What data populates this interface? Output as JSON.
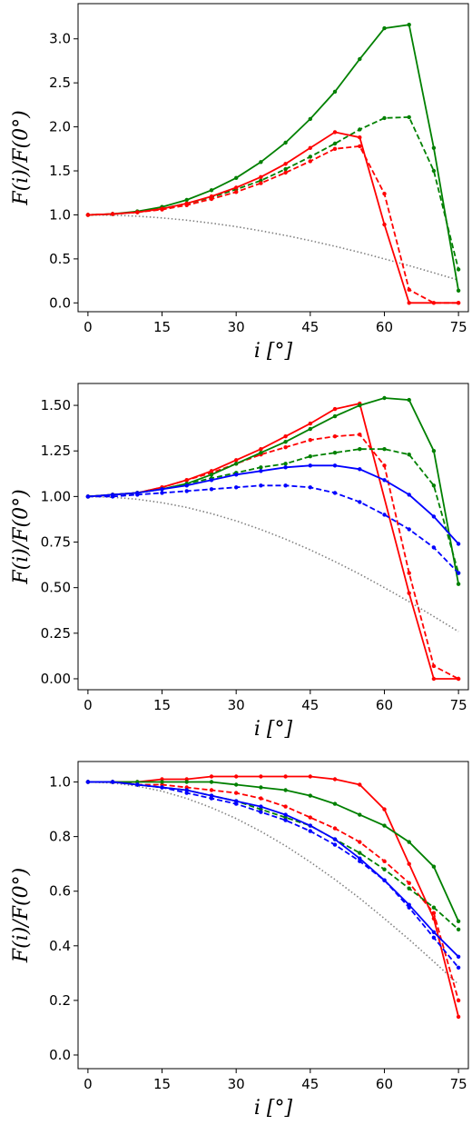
{
  "chart_data": [
    {
      "type": "line",
      "xlabel": "i  [°]",
      "ylabel": "F(i)/F(0°)",
      "xlim": [
        -2,
        77
      ],
      "ylim": [
        -0.1,
        3.4
      ],
      "xticks": [
        0,
        15,
        30,
        45,
        60,
        75
      ],
      "xtick_labels": [
        "0",
        "15",
        "30",
        "45",
        "60",
        "75"
      ],
      "yticks": [
        0.0,
        0.5,
        1.0,
        1.5,
        2.0,
        2.5,
        3.0
      ],
      "ytick_labels": [
        "0.0",
        "0.5",
        "1.0",
        "1.5",
        "2.0",
        "2.5",
        "3.0"
      ],
      "grid": false,
      "series": [
        {
          "color": "#808080",
          "style": "dotted",
          "markers": false,
          "x": [
            0,
            5,
            10,
            15,
            20,
            25,
            30,
            35,
            40,
            45,
            50,
            55,
            60,
            65,
            70,
            75
          ],
          "y": [
            1.0,
            0.996,
            0.985,
            0.966,
            0.94,
            0.906,
            0.866,
            0.819,
            0.766,
            0.707,
            0.643,
            0.574,
            0.5,
            0.423,
            0.342,
            0.259
          ]
        },
        {
          "color": "#008000",
          "style": "solid",
          "markers": true,
          "x": [
            0,
            5,
            10,
            15,
            20,
            25,
            30,
            35,
            40,
            45,
            50,
            55,
            60,
            65,
            70,
            75
          ],
          "y": [
            1.0,
            1.01,
            1.04,
            1.09,
            1.17,
            1.28,
            1.42,
            1.6,
            1.82,
            2.09,
            2.4,
            2.77,
            3.12,
            3.16,
            1.76,
            0.14
          ]
        },
        {
          "color": "#008000",
          "style": "dashed",
          "markers": true,
          "x": [
            0,
            5,
            10,
            15,
            20,
            25,
            30,
            35,
            40,
            45,
            50,
            55,
            60,
            65,
            70,
            75
          ],
          "y": [
            1.0,
            1.01,
            1.03,
            1.07,
            1.13,
            1.2,
            1.29,
            1.39,
            1.52,
            1.66,
            1.81,
            1.97,
            2.1,
            2.11,
            1.5,
            0.38
          ]
        },
        {
          "color": "#ff0000",
          "style": "solid",
          "markers": true,
          "x": [
            0,
            5,
            10,
            15,
            20,
            25,
            30,
            35,
            40,
            45,
            50,
            55,
            60,
            65,
            75
          ],
          "y": [
            1.0,
            1.01,
            1.03,
            1.07,
            1.13,
            1.21,
            1.31,
            1.43,
            1.58,
            1.76,
            1.94,
            1.88,
            0.89,
            0.0,
            0.0
          ]
        },
        {
          "color": "#ff0000",
          "style": "dashed",
          "markers": true,
          "x": [
            0,
            5,
            10,
            15,
            20,
            25,
            30,
            35,
            40,
            45,
            50,
            55,
            60,
            65,
            70,
            75
          ],
          "y": [
            1.0,
            1.01,
            1.03,
            1.06,
            1.11,
            1.18,
            1.26,
            1.36,
            1.48,
            1.61,
            1.75,
            1.78,
            1.24,
            0.15,
            0.0,
            0.0
          ]
        }
      ]
    },
    {
      "type": "line",
      "xlabel": "i  [°]",
      "ylabel": "F(i)/F(0°)",
      "xlim": [
        -2,
        77
      ],
      "ylim": [
        -0.06,
        1.62
      ],
      "xticks": [
        0,
        15,
        30,
        45,
        60,
        75
      ],
      "xtick_labels": [
        "0",
        "15",
        "30",
        "45",
        "60",
        "75"
      ],
      "yticks": [
        0.0,
        0.25,
        0.5,
        0.75,
        1.0,
        1.25,
        1.5
      ],
      "ytick_labels": [
        "0.00",
        "0.25",
        "0.50",
        "0.75",
        "1.00",
        "1.25",
        "1.50"
      ],
      "grid": false,
      "series": [
        {
          "color": "#808080",
          "style": "dotted",
          "markers": false,
          "x": [
            0,
            5,
            10,
            15,
            20,
            25,
            30,
            35,
            40,
            45,
            50,
            55,
            60,
            65,
            70,
            75
          ],
          "y": [
            1.0,
            0.996,
            0.985,
            0.966,
            0.94,
            0.906,
            0.866,
            0.819,
            0.766,
            0.707,
            0.643,
            0.574,
            0.5,
            0.423,
            0.342,
            0.259
          ]
        },
        {
          "color": "#ff0000",
          "style": "solid",
          "markers": true,
          "x": [
            0,
            5,
            10,
            15,
            20,
            25,
            30,
            35,
            40,
            45,
            50,
            55,
            65,
            70,
            75
          ],
          "y": [
            1.0,
            1.01,
            1.02,
            1.05,
            1.09,
            1.14,
            1.2,
            1.26,
            1.33,
            1.4,
            1.48,
            1.51,
            0.47,
            0.0,
            0.0
          ]
        },
        {
          "color": "#ff0000",
          "style": "dashed",
          "markers": true,
          "x": [
            0,
            5,
            10,
            15,
            20,
            25,
            30,
            35,
            40,
            45,
            50,
            55,
            60,
            65,
            70,
            75
          ],
          "y": [
            1.0,
            1.01,
            1.02,
            1.05,
            1.09,
            1.13,
            1.18,
            1.23,
            1.27,
            1.31,
            1.33,
            1.34,
            1.17,
            0.58,
            0.07,
            0.0
          ]
        },
        {
          "color": "#008000",
          "style": "solid",
          "markers": true,
          "x": [
            0,
            5,
            10,
            15,
            20,
            25,
            30,
            35,
            40,
            45,
            50,
            55,
            60,
            65,
            70,
            75
          ],
          "y": [
            1.0,
            1.01,
            1.02,
            1.04,
            1.07,
            1.12,
            1.18,
            1.24,
            1.3,
            1.37,
            1.44,
            1.5,
            1.54,
            1.53,
            1.25,
            0.52
          ]
        },
        {
          "color": "#008000",
          "style": "dashed",
          "markers": true,
          "x": [
            0,
            5,
            10,
            15,
            20,
            25,
            30,
            35,
            40,
            45,
            50,
            55,
            60,
            65,
            70,
            75
          ],
          "y": [
            1.0,
            1.01,
            1.02,
            1.04,
            1.07,
            1.1,
            1.13,
            1.16,
            1.18,
            1.22,
            1.24,
            1.26,
            1.26,
            1.23,
            1.06,
            0.58
          ]
        },
        {
          "color": "#0000ff",
          "style": "solid",
          "markers": true,
          "x": [
            0,
            5,
            10,
            15,
            20,
            25,
            30,
            35,
            40,
            45,
            50,
            55,
            60,
            65,
            70,
            75
          ],
          "y": [
            1.0,
            1.01,
            1.02,
            1.04,
            1.06,
            1.09,
            1.12,
            1.14,
            1.16,
            1.17,
            1.17,
            1.15,
            1.09,
            1.01,
            0.89,
            0.74
          ]
        },
        {
          "color": "#0000ff",
          "style": "dashed",
          "markers": true,
          "x": [
            0,
            5,
            10,
            15,
            20,
            25,
            30,
            35,
            40,
            45,
            50,
            55,
            60,
            65,
            70,
            75
          ],
          "y": [
            1.0,
            1.0,
            1.01,
            1.02,
            1.03,
            1.04,
            1.05,
            1.06,
            1.06,
            1.05,
            1.02,
            0.97,
            0.9,
            0.82,
            0.72,
            0.58
          ]
        }
      ]
    },
    {
      "type": "line",
      "xlabel": "i  [°]",
      "ylabel": "F(i)/F(0°)",
      "xlim": [
        -2,
        77
      ],
      "ylim": [
        -0.05,
        1.075
      ],
      "xticks": [
        0,
        15,
        30,
        45,
        60,
        75
      ],
      "xtick_labels": [
        "0",
        "15",
        "30",
        "45",
        "60",
        "75"
      ],
      "yticks": [
        0.0,
        0.2,
        0.4,
        0.6,
        0.8,
        1.0
      ],
      "ytick_labels": [
        "0.0",
        "0.2",
        "0.4",
        "0.6",
        "0.8",
        "1.0"
      ],
      "grid": false,
      "series": [
        {
          "color": "#808080",
          "style": "dotted",
          "markers": false,
          "x": [
            0,
            5,
            10,
            15,
            20,
            25,
            30,
            35,
            40,
            45,
            50,
            55,
            60,
            65,
            70,
            75
          ],
          "y": [
            1.0,
            0.996,
            0.985,
            0.966,
            0.94,
            0.906,
            0.866,
            0.819,
            0.766,
            0.707,
            0.643,
            0.574,
            0.5,
            0.423,
            0.342,
            0.259
          ]
        },
        {
          "color": "#ff0000",
          "style": "solid",
          "markers": true,
          "x": [
            0,
            5,
            10,
            15,
            20,
            25,
            30,
            35,
            40,
            45,
            50,
            55,
            60,
            65,
            70,
            75
          ],
          "y": [
            1.0,
            1.0,
            1.0,
            1.01,
            1.01,
            1.02,
            1.02,
            1.02,
            1.02,
            1.02,
            1.01,
            0.99,
            0.9,
            0.7,
            0.5,
            0.14
          ]
        },
        {
          "color": "#ff0000",
          "style": "dashed",
          "markers": true,
          "x": [
            0,
            5,
            10,
            15,
            20,
            25,
            30,
            35,
            40,
            45,
            50,
            55,
            60,
            65,
            70,
            75
          ],
          "y": [
            1.0,
            1.0,
            0.99,
            0.99,
            0.98,
            0.97,
            0.96,
            0.94,
            0.91,
            0.87,
            0.83,
            0.78,
            0.71,
            0.63,
            0.52,
            0.2
          ]
        },
        {
          "color": "#008000",
          "style": "solid",
          "markers": true,
          "x": [
            0,
            5,
            10,
            15,
            20,
            25,
            30,
            35,
            40,
            45,
            50,
            55,
            60,
            65,
            70,
            75
          ],
          "y": [
            1.0,
            1.0,
            1.0,
            1.0,
            1.0,
            1.0,
            0.99,
            0.98,
            0.97,
            0.95,
            0.92,
            0.88,
            0.84,
            0.78,
            0.69,
            0.49
          ]
        },
        {
          "color": "#008000",
          "style": "dashed",
          "markers": true,
          "x": [
            0,
            5,
            10,
            15,
            20,
            25,
            30,
            35,
            40,
            45,
            50,
            55,
            60,
            65,
            70,
            75
          ],
          "y": [
            1.0,
            1.0,
            0.99,
            0.98,
            0.97,
            0.95,
            0.93,
            0.9,
            0.87,
            0.84,
            0.79,
            0.74,
            0.68,
            0.61,
            0.54,
            0.46
          ]
        },
        {
          "color": "#0000ff",
          "style": "solid",
          "markers": true,
          "x": [
            0,
            5,
            10,
            15,
            20,
            25,
            30,
            35,
            40,
            45,
            50,
            55,
            60,
            65,
            70,
            75
          ],
          "y": [
            1.0,
            1.0,
            0.99,
            0.98,
            0.97,
            0.95,
            0.93,
            0.91,
            0.88,
            0.84,
            0.79,
            0.72,
            0.64,
            0.55,
            0.45,
            0.36
          ]
        },
        {
          "color": "#0000ff",
          "style": "dashed",
          "markers": true,
          "x": [
            0,
            5,
            10,
            15,
            20,
            25,
            30,
            35,
            40,
            45,
            50,
            55,
            60,
            65,
            70,
            75
          ],
          "y": [
            1.0,
            1.0,
            0.99,
            0.98,
            0.96,
            0.94,
            0.92,
            0.89,
            0.86,
            0.82,
            0.77,
            0.71,
            0.64,
            0.54,
            0.43,
            0.32
          ]
        }
      ]
    }
  ]
}
